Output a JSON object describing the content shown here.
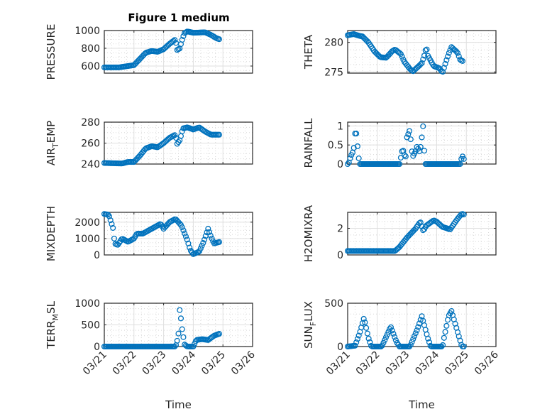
{
  "figure_title": "Figure 1 medium",
  "colors": {
    "marker": "#0072BD",
    "axis": "#262626",
    "grid": "#dfdfdf"
  },
  "chart_data": [
    {
      "type": "scatter",
      "name": "pressure",
      "ylabel": "PRESSURE",
      "xlabel": "",
      "ylim": [
        520,
        1000
      ],
      "yticks": [
        600,
        800,
        1000
      ],
      "yticklabels": [
        "600",
        "800",
        "1000"
      ],
      "xlim": [
        21,
        26
      ],
      "xticks": [
        21,
        22,
        23,
        24,
        25,
        26
      ],
      "xticklabels": [],
      "grid": true,
      "keypoints": [
        [
          21,
          585
        ],
        [
          21.5,
          585
        ],
        [
          21.8,
          600
        ],
        [
          22,
          610
        ],
        [
          22.2,
          680
        ],
        [
          22.4,
          750
        ],
        [
          22.6,
          770
        ],
        [
          22.8,
          760
        ],
        [
          23,
          790
        ],
        [
          23.2,
          850
        ],
        [
          23.4,
          900
        ],
        [
          23.45,
          780
        ],
        [
          23.55,
          800
        ],
        [
          23.6,
          870
        ],
        [
          23.7,
          970
        ],
        [
          23.8,
          990
        ],
        [
          24,
          975
        ],
        [
          24.4,
          980
        ],
        [
          24.6,
          950
        ],
        [
          24.8,
          910
        ],
        [
          24.9,
          900
        ]
      ]
    },
    {
      "type": "scatter",
      "name": "theta",
      "ylabel": "THETA",
      "xlabel": "",
      "ylim": [
        274.8,
        282
      ],
      "yticks": [
        275,
        280
      ],
      "yticklabels": [
        "275",
        "280"
      ],
      "xlim": [
        21,
        26
      ],
      "xticks": [
        21,
        22,
        23,
        24,
        25,
        26
      ],
      "xticklabels": [],
      "grid": true,
      "keypoints": [
        [
          21,
          281.2
        ],
        [
          21.2,
          281.4
        ],
        [
          21.4,
          281.1
        ],
        [
          21.5,
          281
        ],
        [
          21.7,
          280
        ],
        [
          21.9,
          278.5
        ],
        [
          22.1,
          277.5
        ],
        [
          22.3,
          277.4
        ],
        [
          22.5,
          278.5
        ],
        [
          22.6,
          278.8
        ],
        [
          22.8,
          278
        ],
        [
          22.9,
          276.8
        ],
        [
          23.1,
          275.5
        ],
        [
          23.2,
          275.1
        ],
        [
          23.4,
          276
        ],
        [
          23.5,
          276.5
        ],
        [
          23.6,
          278
        ],
        [
          23.65,
          279.3
        ],
        [
          23.7,
          277.8
        ],
        [
          23.9,
          276
        ],
        [
          24.1,
          275.6
        ],
        [
          24.2,
          274.9
        ],
        [
          24.3,
          276.5
        ],
        [
          24.4,
          278
        ],
        [
          24.5,
          279.2
        ],
        [
          24.7,
          278.3
        ],
        [
          24.8,
          277
        ],
        [
          24.9,
          276.8
        ]
      ]
    },
    {
      "type": "scatter",
      "name": "air-temp",
      "ylabel": "AIR_TEMP",
      "xlabel": "",
      "ylim": [
        240,
        280
      ],
      "yticks": [
        240,
        260,
        280
      ],
      "yticklabels": [
        "240",
        "260",
        "280"
      ],
      "xlim": [
        21,
        26
      ],
      "xticks": [
        21,
        22,
        23,
        24,
        25,
        26
      ],
      "xticklabels": [],
      "grid": true,
      "keypoints": [
        [
          21,
          241
        ],
        [
          21.6,
          240.5
        ],
        [
          21.8,
          242
        ],
        [
          22,
          242
        ],
        [
          22.2,
          248
        ],
        [
          22.4,
          255
        ],
        [
          22.6,
          257
        ],
        [
          22.8,
          256
        ],
        [
          23,
          260
        ],
        [
          23.2,
          265
        ],
        [
          23.4,
          268
        ],
        [
          23.45,
          259
        ],
        [
          23.55,
          263
        ],
        [
          23.65,
          274
        ],
        [
          23.8,
          275
        ],
        [
          24,
          273
        ],
        [
          24.2,
          275
        ],
        [
          24.4,
          271
        ],
        [
          24.6,
          268
        ],
        [
          24.9,
          268
        ]
      ]
    },
    {
      "type": "scatter",
      "name": "rainfall",
      "ylabel": "RAINFALL",
      "xlabel": "",
      "ylim": [
        0,
        1.1
      ],
      "yticks": [
        0,
        0.5,
        1
      ],
      "yticklabels": [
        "0",
        "0.5",
        "1"
      ],
      "xlim": [
        21,
        26
      ],
      "xticks": [
        21,
        22,
        23,
        24,
        25,
        26
      ],
      "xticklabels": [],
      "grid": true,
      "keypoints": [
        [
          21,
          0
        ],
        [
          21.05,
          0.05
        ],
        [
          21.1,
          0.2
        ],
        [
          21.2,
          0.35
        ],
        [
          21.25,
          0.8
        ],
        [
          21.3,
          0.8
        ],
        [
          21.35,
          0.3
        ],
        [
          21.4,
          0
        ],
        [
          22.75,
          0
        ],
        [
          22.8,
          0.2
        ],
        [
          22.85,
          0.4
        ],
        [
          22.9,
          0.3
        ],
        [
          22.95,
          0.1
        ],
        [
          23.0,
          0.7
        ],
        [
          23.05,
          0.8
        ],
        [
          23.1,
          0.9
        ],
        [
          23.15,
          0.4
        ],
        [
          23.2,
          0.2
        ],
        [
          23.3,
          0.35
        ],
        [
          23.35,
          0.5
        ],
        [
          23.4,
          0.3
        ],
        [
          23.45,
          0.4
        ],
        [
          23.5,
          0.7
        ],
        [
          23.55,
          1.05
        ],
        [
          23.6,
          0
        ],
        [
          24.8,
          0
        ],
        [
          24.85,
          0.2
        ],
        [
          24.9,
          0.2
        ],
        [
          24.95,
          0
        ]
      ]
    },
    {
      "type": "scatter",
      "name": "mixdepth",
      "ylabel": "MIXDEPTH",
      "xlabel": "",
      "ylim": [
        0,
        2600
      ],
      "yticks": [
        0,
        1000,
        2000
      ],
      "yticklabels": [
        "0",
        "1000",
        "2000"
      ],
      "xlim": [
        21,
        26
      ],
      "xticks": [
        21,
        22,
        23,
        24,
        25,
        26
      ],
      "xticklabels": [],
      "grid": true,
      "keypoints": [
        [
          21,
          2500
        ],
        [
          21.15,
          2450
        ],
        [
          21.3,
          1600
        ],
        [
          21.35,
          700
        ],
        [
          21.45,
          600
        ],
        [
          21.6,
          1000
        ],
        [
          21.8,
          800
        ],
        [
          22,
          1000
        ],
        [
          22.1,
          1300
        ],
        [
          22.3,
          1300
        ],
        [
          22.6,
          1600
        ],
        [
          22.9,
          1900
        ],
        [
          23,
          1600
        ],
        [
          23.2,
          2000
        ],
        [
          23.4,
          2200
        ],
        [
          23.6,
          1800
        ],
        [
          23.8,
          900
        ],
        [
          23.9,
          300
        ],
        [
          24,
          50
        ],
        [
          24.2,
          200
        ],
        [
          24.35,
          800
        ],
        [
          24.5,
          1600
        ],
        [
          24.6,
          1100
        ],
        [
          24.7,
          700
        ],
        [
          24.9,
          800
        ]
      ]
    },
    {
      "type": "scatter",
      "name": "h2omixra",
      "ylabel": "H2OMIXRA",
      "xlabel": "",
      "ylim": [
        0,
        3.2
      ],
      "yticks": [
        0,
        2
      ],
      "yticklabels": [
        "0",
        "2"
      ],
      "xlim": [
        21,
        26
      ],
      "xticks": [
        21,
        22,
        23,
        24,
        25,
        26
      ],
      "xticklabels": [],
      "grid": true,
      "keypoints": [
        [
          21,
          0.3
        ],
        [
          22.6,
          0.3
        ],
        [
          22.75,
          0.6
        ],
        [
          23,
          1.3
        ],
        [
          23.3,
          2.0
        ],
        [
          23.45,
          2.5
        ],
        [
          23.55,
          1.8
        ],
        [
          23.65,
          2.2
        ],
        [
          23.9,
          2.6
        ],
        [
          24,
          2.5
        ],
        [
          24.2,
          2.1
        ],
        [
          24.35,
          2.0
        ],
        [
          24.45,
          1.9
        ],
        [
          24.7,
          2.7
        ],
        [
          24.85,
          3.1
        ],
        [
          24.95,
          3.0
        ]
      ]
    },
    {
      "type": "scatter",
      "name": "terr-msl",
      "ylabel": "TERR_MSL",
      "xlabel": "Time",
      "ylim": [
        0,
        1000
      ],
      "yticks": [
        0,
        500,
        1000
      ],
      "yticklabels": [
        "0",
        "500",
        "1000"
      ],
      "xlim": [
        21,
        26
      ],
      "xticks": [
        21,
        22,
        23,
        24,
        25,
        26
      ],
      "xticklabels": [
        "03/21",
        "03/22",
        "03/23",
        "03/24",
        "03/25",
        "03/26"
      ],
      "grid": true,
      "keypoints": [
        [
          21,
          0
        ],
        [
          23.4,
          0
        ],
        [
          23.45,
          100
        ],
        [
          23.5,
          300
        ],
        [
          23.55,
          950
        ],
        [
          23.6,
          500
        ],
        [
          23.65,
          300
        ],
        [
          23.7,
          50
        ],
        [
          23.8,
          0
        ],
        [
          24,
          0
        ],
        [
          24.1,
          150
        ],
        [
          24.3,
          170
        ],
        [
          24.5,
          150
        ],
        [
          24.7,
          250
        ],
        [
          24.9,
          300
        ]
      ]
    },
    {
      "type": "scatter",
      "name": "sun-flux",
      "ylabel": "SUN_FLUX",
      "xlabel": "Time",
      "ylim": [
        0,
        500
      ],
      "yticks": [
        0,
        500
      ],
      "yticklabels": [
        "0",
        "500"
      ],
      "xlim": [
        21,
        26
      ],
      "xticks": [
        21,
        22,
        23,
        24,
        25,
        26
      ],
      "xticklabels": [
        "03/21",
        "03/22",
        "03/23",
        "03/24",
        "03/25",
        "03/26"
      ],
      "grid": true,
      "keypoints": [
        [
          21,
          0
        ],
        [
          21.25,
          10
        ],
        [
          21.4,
          150
        ],
        [
          21.55,
          330
        ],
        [
          21.7,
          100
        ],
        [
          21.8,
          0
        ],
        [
          22.15,
          0
        ],
        [
          22.35,
          150
        ],
        [
          22.45,
          230
        ],
        [
          22.65,
          50
        ],
        [
          22.75,
          0
        ],
        [
          23.1,
          0
        ],
        [
          23.35,
          200
        ],
        [
          23.5,
          350
        ],
        [
          23.7,
          100
        ],
        [
          23.8,
          0
        ],
        [
          24.2,
          0
        ],
        [
          24.25,
          100
        ],
        [
          24.4,
          350
        ],
        [
          24.5,
          410
        ],
        [
          24.85,
          0
        ],
        [
          24.95,
          0
        ]
      ]
    }
  ]
}
